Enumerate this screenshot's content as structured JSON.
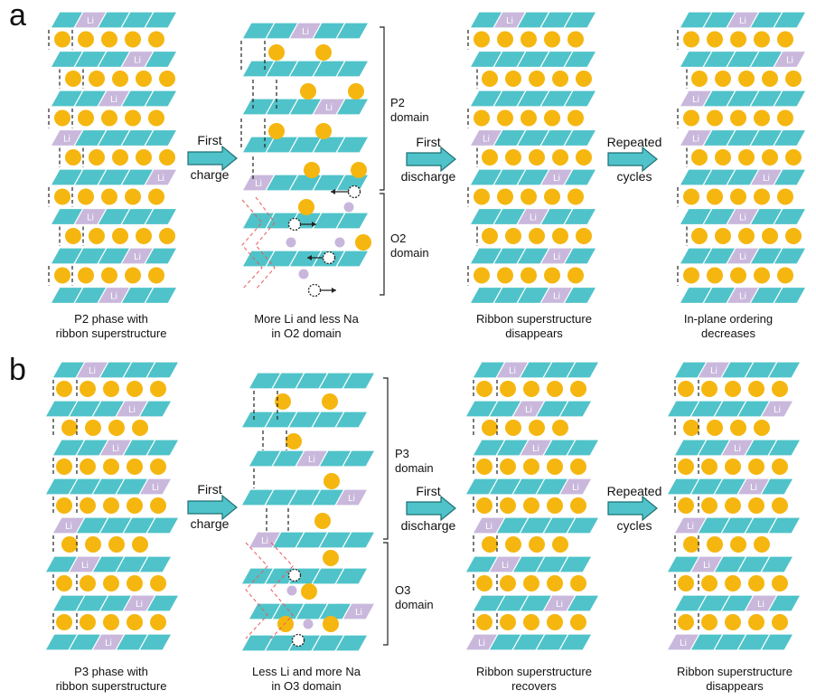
{
  "panel_a": {
    "label": "a",
    "captions": [
      "P2 phase with",
      "ribbon superstructure",
      "More Li and less Na",
      "in O2 domain",
      "Ribbon superstructure",
      "disappears",
      "In-plane ordering",
      "decreases"
    ],
    "arrow1": [
      "First",
      "charge"
    ],
    "arrow2": [
      "First",
      "discharge"
    ],
    "arrow3": [
      "Repeated",
      "cycles"
    ],
    "domain_upper": [
      "P2",
      "domain"
    ],
    "domain_lower": [
      "O2",
      "domain"
    ]
  },
  "panel_b": {
    "label": "b",
    "captions": [
      "P3 phase with",
      "ribbon superstructure",
      "Less Li and more Na",
      "in O3 domain",
      "Ribbon superstructure",
      "recovers",
      "Ribbon superstructure",
      "disappears"
    ],
    "arrow1": [
      "First",
      "charge"
    ],
    "arrow2": [
      "First",
      "discharge"
    ],
    "arrow3": [
      "Repeated",
      "cycles"
    ],
    "domain_upper": [
      "P3",
      "domain"
    ],
    "domain_lower": [
      "O3",
      "domain"
    ]
  },
  "li_label": "Li",
  "colors": {
    "slab": "#4fc3c9",
    "slab_edge": "#2a98a0",
    "li_slab": "#c9b8dc",
    "na_atom": "#f5b60f",
    "li_atom": "#c9b6dc",
    "arrow_fill": "#4fc3c9",
    "arrow_edge": "#1f6f74",
    "stacking_line": "#e85a5a"
  },
  "icons": {
    "layer_slab": "parallelogram",
    "sodium": "yellow-circle",
    "vacancy": "dashed-circle",
    "process_arrow": "right-arrow"
  }
}
